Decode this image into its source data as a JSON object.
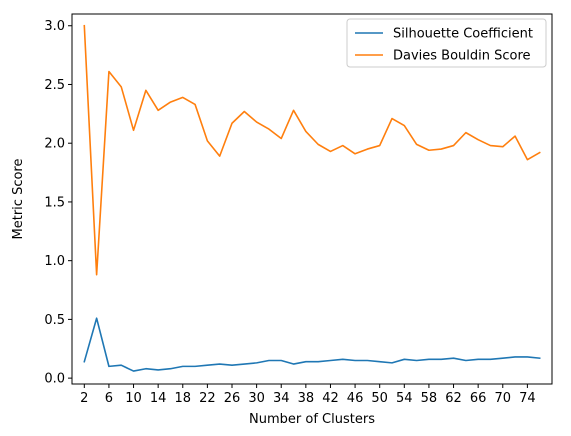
{
  "chart_data": {
    "type": "line",
    "title": "",
    "xlabel": "Number of Clusters",
    "ylabel": "Metric Score",
    "xlim": [
      0,
      78
    ],
    "ylim": [
      -0.05,
      3.1
    ],
    "xticks": [
      2,
      6,
      10,
      14,
      18,
      22,
      26,
      30,
      34,
      38,
      42,
      46,
      50,
      54,
      58,
      62,
      66,
      70,
      74
    ],
    "yticks": [
      0.0,
      0.5,
      1.0,
      1.5,
      2.0,
      2.5,
      3.0
    ],
    "ytick_labels": [
      "0.0",
      "0.5",
      "1.0",
      "1.5",
      "2.0",
      "2.5",
      "3.0"
    ],
    "grid": false,
    "legend_position": "top-right",
    "x": [
      2,
      4,
      6,
      8,
      10,
      12,
      14,
      16,
      18,
      20,
      22,
      24,
      26,
      28,
      30,
      32,
      34,
      36,
      38,
      40,
      42,
      44,
      46,
      48,
      50,
      52,
      54,
      56,
      58,
      60,
      62,
      64,
      66,
      68,
      70,
      72,
      74,
      76
    ],
    "series": [
      {
        "name": "Silhouette Coefficient",
        "color": "#1f77b4",
        "values": [
          0.14,
          0.51,
          0.1,
          0.11,
          0.06,
          0.08,
          0.07,
          0.08,
          0.1,
          0.1,
          0.11,
          0.12,
          0.11,
          0.12,
          0.13,
          0.15,
          0.15,
          0.12,
          0.14,
          0.14,
          0.15,
          0.16,
          0.15,
          0.15,
          0.14,
          0.13,
          0.16,
          0.15,
          0.16,
          0.16,
          0.17,
          0.15,
          0.16,
          0.16,
          0.17,
          0.18,
          0.18,
          0.17
        ]
      },
      {
        "name": "Davies Bouldin Score",
        "color": "#ff7f0e",
        "values": [
          3.0,
          0.88,
          2.61,
          2.48,
          2.11,
          2.45,
          2.28,
          2.35,
          2.39,
          2.33,
          2.02,
          1.89,
          2.17,
          2.27,
          2.18,
          2.12,
          2.04,
          2.28,
          2.1,
          1.99,
          1.93,
          1.98,
          1.91,
          1.95,
          1.98,
          2.21,
          2.15,
          1.99,
          1.94,
          1.95,
          1.98,
          2.09,
          2.03,
          1.98,
          1.97,
          2.06,
          1.86,
          1.92
        ]
      }
    ]
  }
}
